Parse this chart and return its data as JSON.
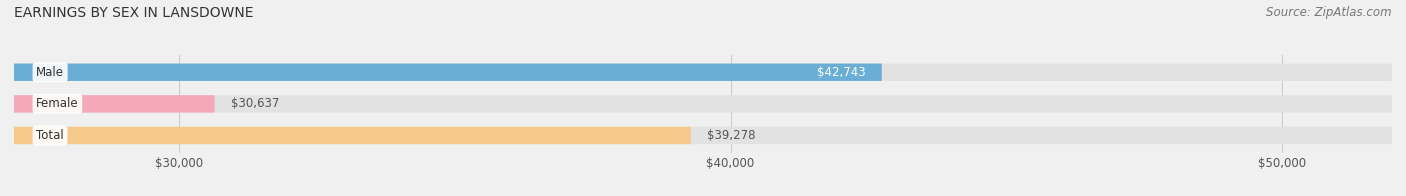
{
  "title": "EARNINGS BY SEX IN LANSDOWNE",
  "source": "Source: ZipAtlas.com",
  "categories": [
    "Male",
    "Female",
    "Total"
  ],
  "values": [
    42743,
    30637,
    39278
  ],
  "bar_colors": [
    "#6aaed6",
    "#f4a8b8",
    "#f5c98a"
  ],
  "label_colors": [
    "#ffffff",
    "#555555",
    "#555555"
  ],
  "label_inside": [
    true,
    false,
    false
  ],
  "xlim": [
    27000,
    52000
  ],
  "xticks": [
    30000,
    40000,
    50000
  ],
  "xtick_labels": [
    "$30,000",
    "$40,000",
    "$50,000"
  ],
  "background_color": "#f0f0f0",
  "bar_background_color": "#e2e2e2",
  "title_fontsize": 10,
  "source_fontsize": 8.5,
  "bar_label_fontsize": 8.5,
  "category_fontsize": 8.5,
  "tick_fontsize": 8.5,
  "bar_height": 0.55
}
